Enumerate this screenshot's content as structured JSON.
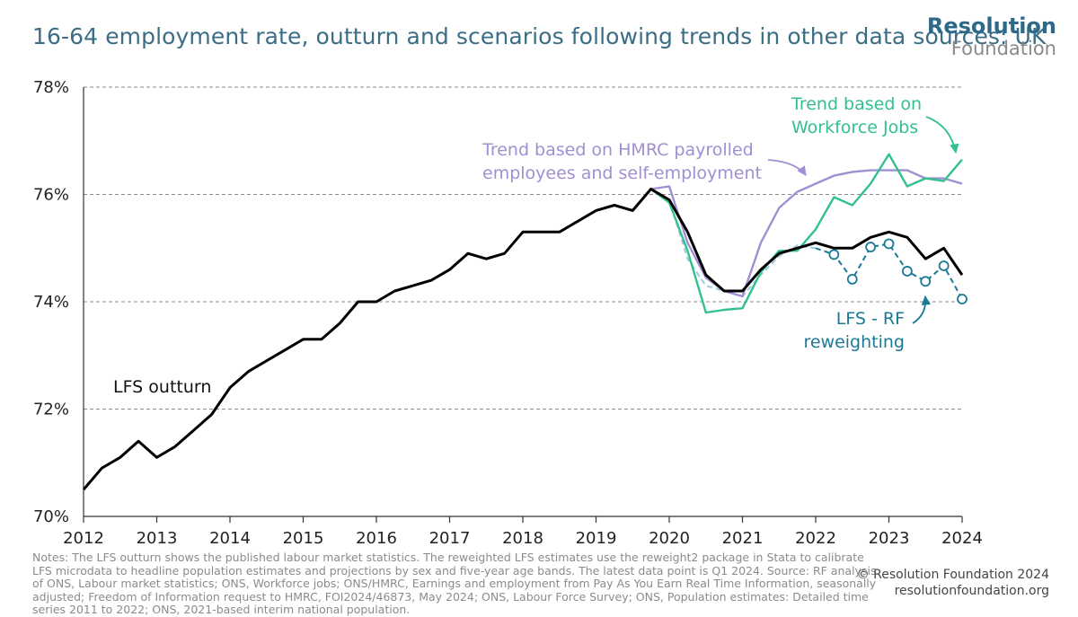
{
  "title": "16-64 employment rate, outturn and scenarios following trends in other data sources: UK",
  "logo": {
    "top": "Resolution",
    "bottom": "Foundation"
  },
  "notes": "Notes: The LFS outturn shows the published labour market statistics. The reweighted LFS estimates use the reweight2 package in Stata to calibrate LFS microdata to headline population estimates and projections by sex and five-year age bands. The latest data point is Q1 2024. Source: RF analysis of ONS, Labour market statistics; ONS, Workforce jobs; ONS/HMRC, Earnings and employment from Pay As You Earn Real Time Information, seasonally adjusted; Freedom of Information request to HMRC, FOI2024/46873, May 2024; ONS, Labour Force Survey; ONS, Population estimates: Detailed time series 2011 to 2022; ONS, 2021-based interim national population.",
  "copyright": {
    "line1": "© Resolution Foundation 2024",
    "line2": "resolutionfoundation.org"
  },
  "colors": {
    "lfs": "#000000",
    "hmrc": "#a08fd2",
    "wfj": "#33c08f",
    "rf": "#1a7a96",
    "rf_light": "#9fc7dc",
    "title": "#3b6e86",
    "grid": "#8a8a8a"
  },
  "chart_data": {
    "type": "line",
    "title": "16-64 employment rate, outturn and scenarios following trends in other data sources: UK",
    "xlabel": "",
    "ylabel": "",
    "xlim": [
      2012,
      2024
    ],
    "ylim": [
      70,
      78
    ],
    "xticks": [
      "2012",
      "2013",
      "2014",
      "2015",
      "2016",
      "2017",
      "2018",
      "2019",
      "2020",
      "2021",
      "2022",
      "2023",
      "2024"
    ],
    "yticks": [
      70,
      72,
      74,
      76,
      78
    ],
    "ytick_labels": [
      "70%",
      "72%",
      "74%",
      "76%",
      "78%"
    ],
    "grid": "horizontal dashed",
    "series": [
      {
        "name": "LFS outturn",
        "x": [
          2012.0,
          2012.25,
          2012.5,
          2012.75,
          2013.0,
          2013.25,
          2013.5,
          2013.75,
          2014.0,
          2014.25,
          2014.5,
          2014.75,
          2015.0,
          2015.25,
          2015.5,
          2015.75,
          2016.0,
          2016.25,
          2016.5,
          2016.75,
          2017.0,
          2017.25,
          2017.5,
          2017.75,
          2018.0,
          2018.25,
          2018.5,
          2018.75,
          2019.0,
          2019.25,
          2019.5,
          2019.75,
          2020.0,
          2020.25,
          2020.5,
          2020.75,
          2021.0,
          2021.25,
          2021.5,
          2021.75,
          2022.0,
          2022.25,
          2022.5,
          2022.75,
          2023.0,
          2023.25,
          2023.5,
          2023.75,
          2024.0
        ],
        "y": [
          70.5,
          70.9,
          71.1,
          71.4,
          71.1,
          71.3,
          71.6,
          71.9,
          72.4,
          72.7,
          72.9,
          73.1,
          73.3,
          73.3,
          73.6,
          74.0,
          74.0,
          74.2,
          74.3,
          74.4,
          74.6,
          74.9,
          74.8,
          74.9,
          75.3,
          75.3,
          75.3,
          75.5,
          75.7,
          75.8,
          75.7,
          76.1,
          75.9,
          75.3,
          74.5,
          74.2,
          74.2,
          74.6,
          74.9,
          75.0,
          75.1,
          75.0,
          75.0,
          75.2,
          75.3,
          75.2,
          74.8,
          75.0,
          74.5
        ]
      },
      {
        "name": "Trend based on HMRC payrolled employees and self-employment",
        "x": [
          2019.75,
          2020.0,
          2020.25,
          2020.5,
          2020.75,
          2021.0,
          2021.25,
          2021.5,
          2021.75,
          2022.0,
          2022.25,
          2022.5,
          2022.75,
          2023.0,
          2023.25,
          2023.5,
          2023.75,
          2024.0
        ],
        "y": [
          76.1,
          76.15,
          75.1,
          74.45,
          74.2,
          74.1,
          75.1,
          75.75,
          76.05,
          76.2,
          76.35,
          76.42,
          76.45,
          76.45,
          76.45,
          76.3,
          76.3,
          76.2
        ]
      },
      {
        "name": "Trend based on Workforce Jobs",
        "x": [
          2019.75,
          2020.0,
          2020.25,
          2020.5,
          2020.75,
          2021.0,
          2021.25,
          2021.5,
          2021.75,
          2022.0,
          2022.25,
          2022.5,
          2022.75,
          2023.0,
          2023.25,
          2023.5,
          2023.75,
          2024.0
        ],
        "y": [
          76.1,
          75.85,
          74.95,
          73.8,
          73.85,
          73.88,
          74.55,
          74.95,
          74.95,
          75.35,
          75.95,
          75.8,
          76.2,
          76.75,
          76.15,
          76.3,
          76.25,
          76.65
        ]
      },
      {
        "name": "LFS - RF reweighting",
        "x": [
          2019.75,
          2020.0,
          2020.25,
          2020.5,
          2020.75,
          2021.0,
          2021.25,
          2021.5,
          2021.75,
          2022.0,
          2022.25,
          2022.5,
          2022.75,
          2023.0,
          2023.25,
          2023.5,
          2023.75,
          2024.0
        ],
        "y": [
          76.1,
          75.9,
          74.8,
          74.3,
          74.2,
          74.1,
          74.5,
          74.85,
          75.05,
          75.0,
          74.88,
          74.42,
          75.02,
          75.08,
          74.57,
          74.38,
          74.67,
          74.05
        ],
        "markers_from_x": 2022.25
      }
    ],
    "annotations": [
      {
        "series": "LFS outturn",
        "lines": [
          "LFS outturn"
        ]
      },
      {
        "series": "Trend based on HMRC payrolled employees and self-employment",
        "lines": [
          "Trend based on HMRC payrolled",
          "employees and self-employment"
        ]
      },
      {
        "series": "Trend based on Workforce Jobs",
        "lines": [
          "Trend based on",
          "Workforce Jobs"
        ]
      },
      {
        "series": "LFS - RF reweighting",
        "lines": [
          "LFS - RF",
          "reweighting"
        ]
      }
    ]
  }
}
